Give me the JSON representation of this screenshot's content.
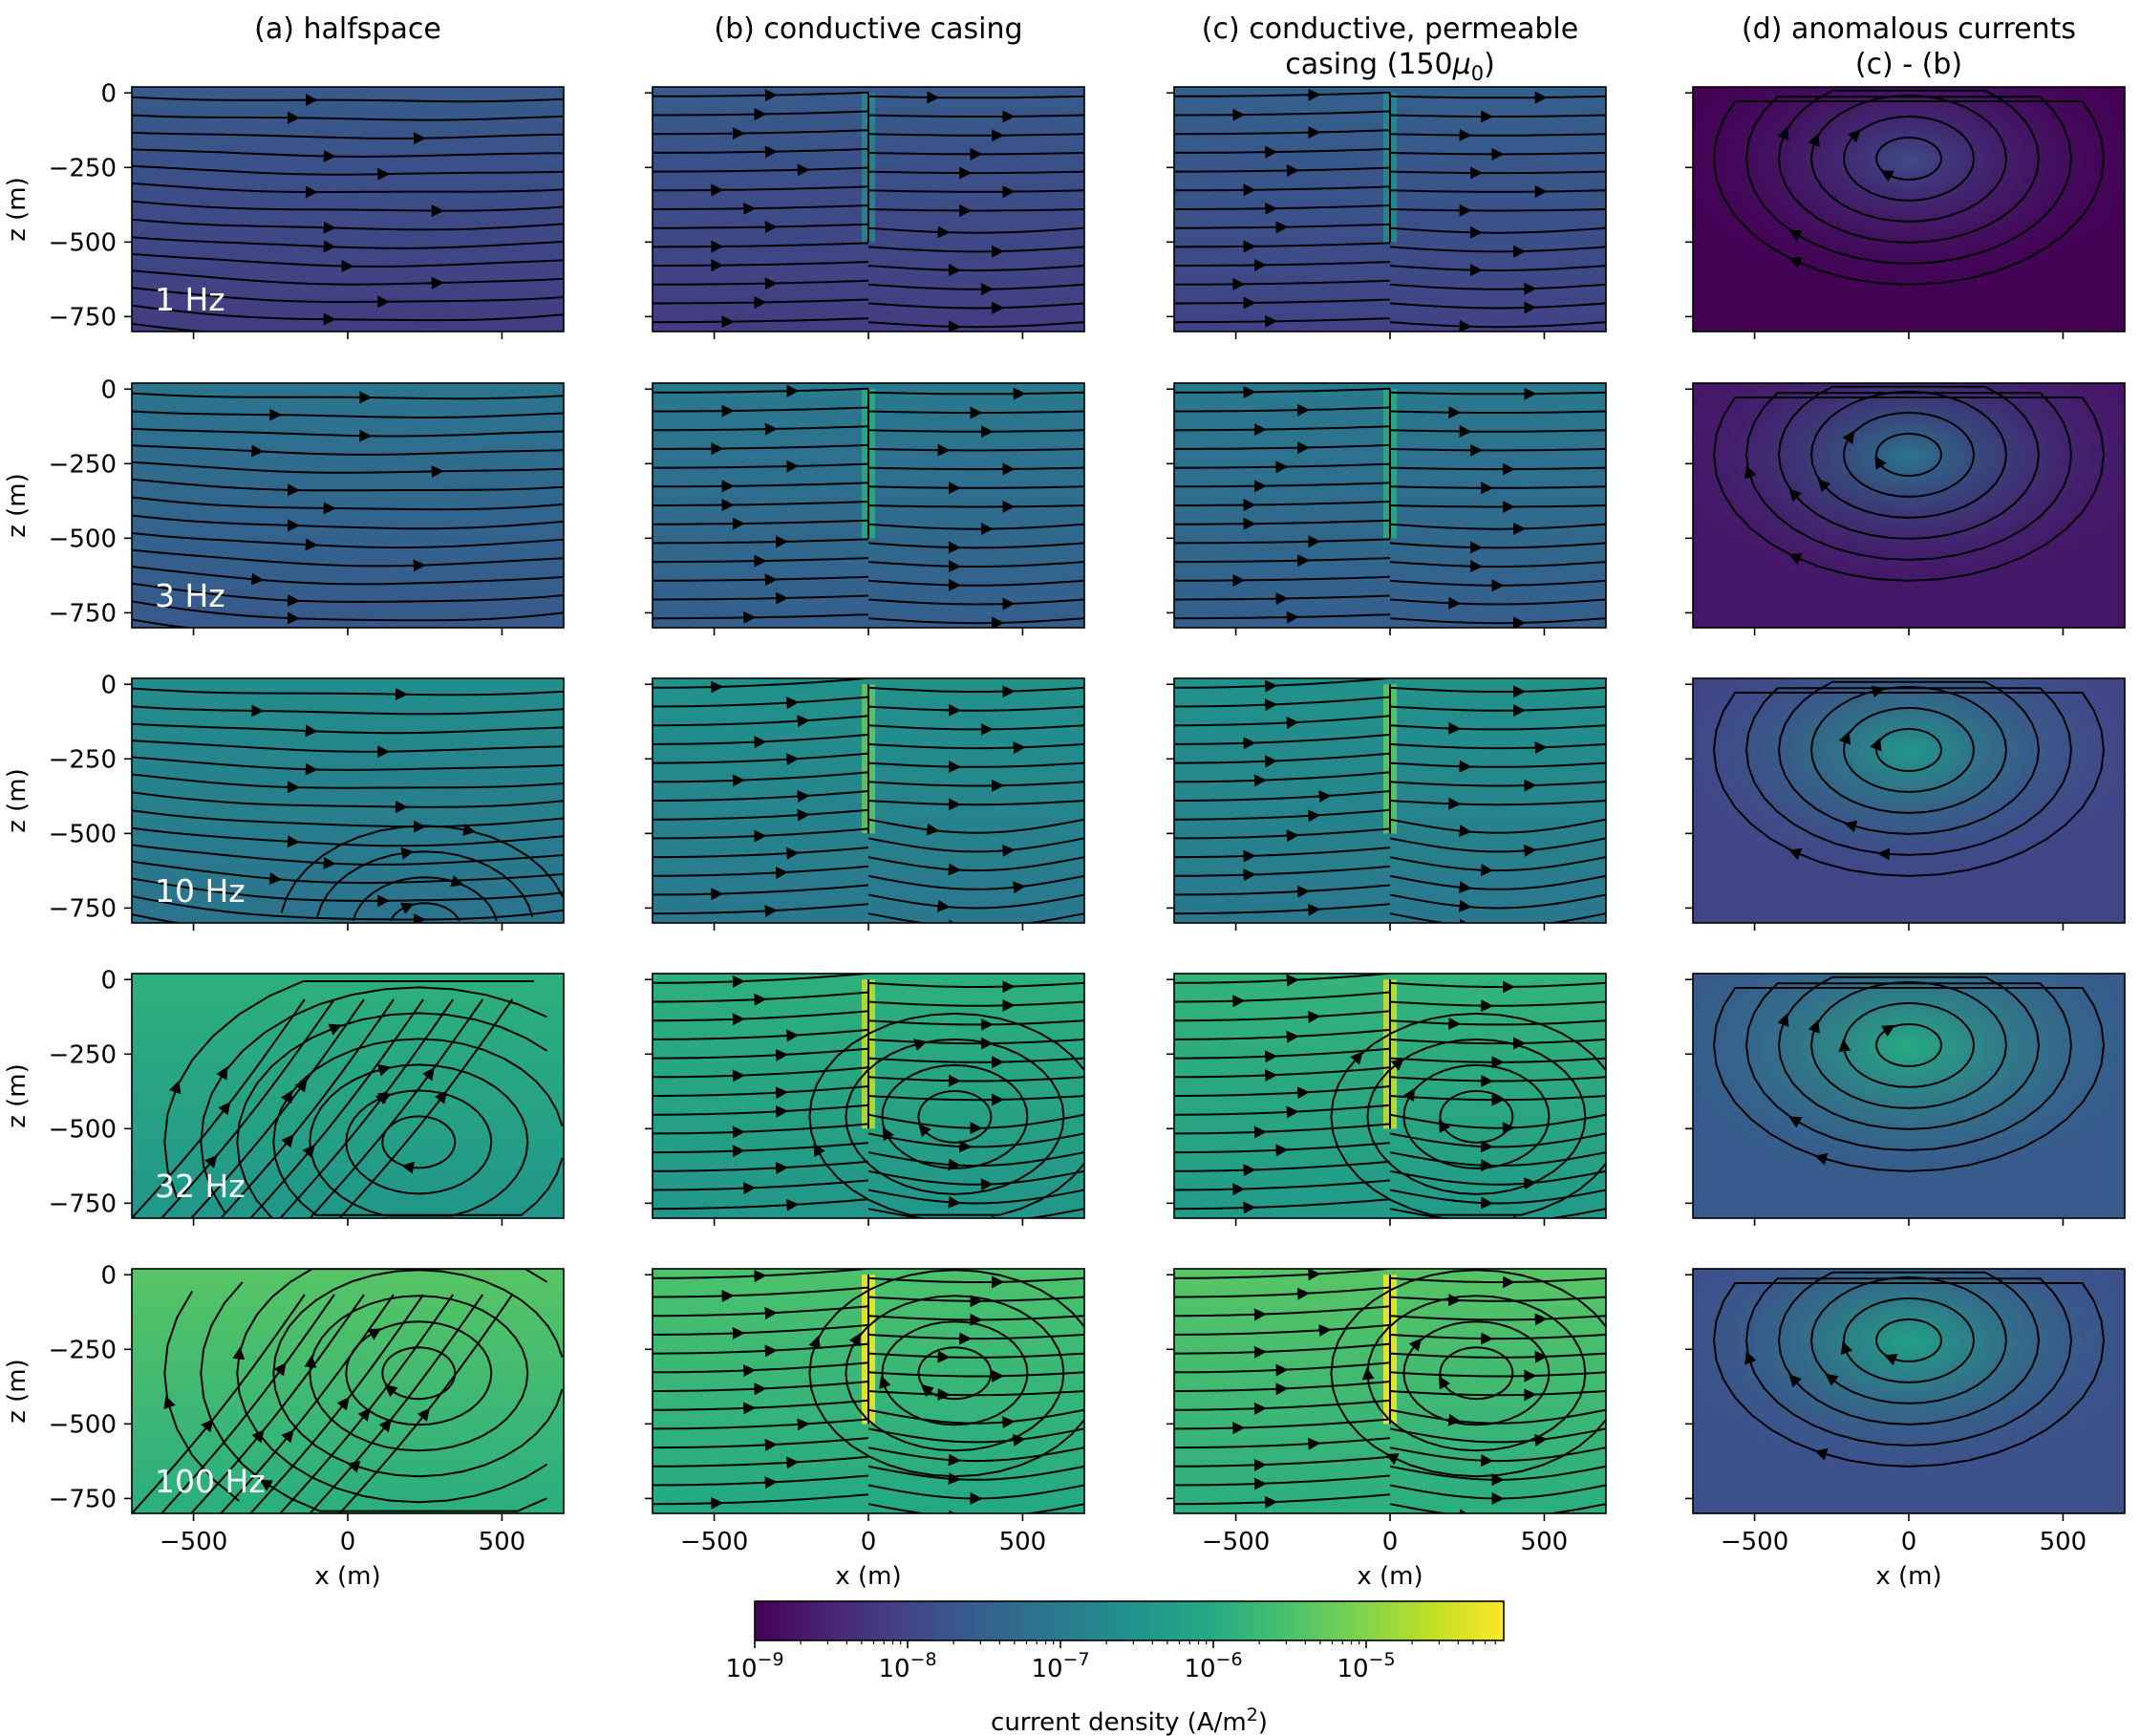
{
  "chart_data": {
    "type": "heatmap",
    "subtype": "streamline-field-grid",
    "layout": {
      "rows": 5,
      "cols": 4,
      "sharex": true,
      "sharey": true,
      "legend": "none",
      "grid": false
    },
    "columns": [
      {
        "title": "(a) halfspace"
      },
      {
        "title": "(b) conductive casing"
      },
      {
        "title_line1": "(c) conductive, permeable",
        "title_line2_prefix": "casing (150",
        "title_line2_mu": "μ",
        "title_line2_sub": "0",
        "title_line2_suffix": ")"
      },
      {
        "title_line1": "(d) anomalous currents",
        "title_line2": "(c) - (b)"
      }
    ],
    "rows": [
      {
        "frequency_hz": 1,
        "label": "1 Hz"
      },
      {
        "frequency_hz": 3,
        "label": "3 Hz"
      },
      {
        "frequency_hz": 10,
        "label": "10 Hz"
      },
      {
        "frequency_hz": 32,
        "label": "32 Hz"
      },
      {
        "frequency_hz": 100,
        "label": "100 Hz"
      }
    ],
    "xlabel": "x (m)",
    "ylabel": "z (m)",
    "xlim": [
      -700,
      700
    ],
    "ylim": [
      -800,
      20
    ],
    "xticks": [
      -500,
      0,
      500
    ],
    "xtick_labels": [
      "−500",
      "0",
      "500"
    ],
    "yticks": [
      0,
      -250,
      -500,
      -750
    ],
    "ytick_labels": [
      "0",
      "−250",
      "−500",
      "−750"
    ],
    "casing": {
      "x": 0,
      "z_top": 0,
      "z_bottom": -500
    },
    "background_log10_density": [
      [
        -8.0,
        -8.0,
        -7.9,
        -9.5
      ],
      [
        -7.5,
        -7.4,
        -7.4,
        -8.7
      ],
      [
        -7.0,
        -6.9,
        -6.9,
        -8.0
      ],
      [
        -6.3,
        -6.3,
        -6.2,
        -7.6
      ],
      [
        -5.8,
        -5.9,
        -5.8,
        -7.8
      ]
    ],
    "colorbar": {
      "label_prefix": "current density (A/m",
      "label_sup": "2",
      "label_suffix": ")",
      "scale": "log",
      "range_log10": [
        -9,
        -4.1
      ],
      "tick_exponents": [
        -9,
        -8,
        -7,
        -6,
        -5
      ],
      "colors": [
        "#440154",
        "#482475",
        "#414487",
        "#355f8d",
        "#2a788e",
        "#21918c",
        "#22a884",
        "#44bf70",
        "#7ad151",
        "#bddf26",
        "#fde725"
      ]
    }
  }
}
